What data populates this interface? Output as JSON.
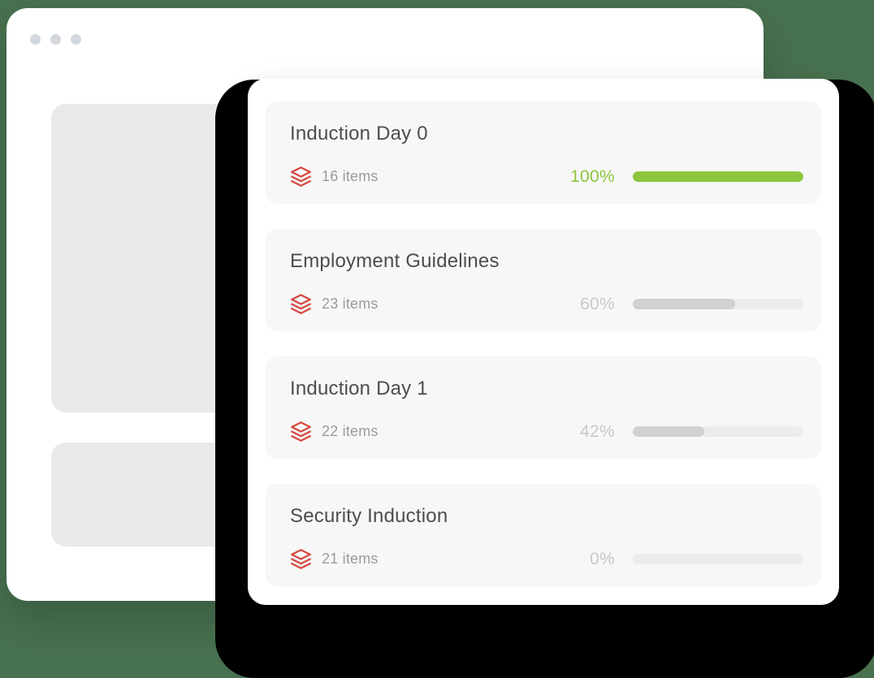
{
  "colors": {
    "background_green": "#48714f",
    "accent_green": "#8cc63e",
    "icon_red": "#d6473f",
    "percent_muted": "#c8c8c8",
    "progress_fill": "#d1d1d1",
    "progress_track": "#ececec"
  },
  "browser_window": {
    "dots": [
      "window-dot",
      "window-dot",
      "window-dot"
    ]
  },
  "card": {
    "rows": [
      {
        "title": "Induction Day 0",
        "items": "16 items",
        "percent_label": "100%",
        "percent": 100,
        "complete": true
      },
      {
        "title": "Employment Guidelines",
        "items": "23 items",
        "percent_label": "60%",
        "percent": 60,
        "complete": false
      },
      {
        "title": "Induction Day 1",
        "items": "22 items",
        "percent_label": "42%",
        "percent": 42,
        "complete": false
      },
      {
        "title": "Security Induction",
        "items": "21 items",
        "percent_label": "0%",
        "percent": 0,
        "complete": false
      }
    ]
  }
}
